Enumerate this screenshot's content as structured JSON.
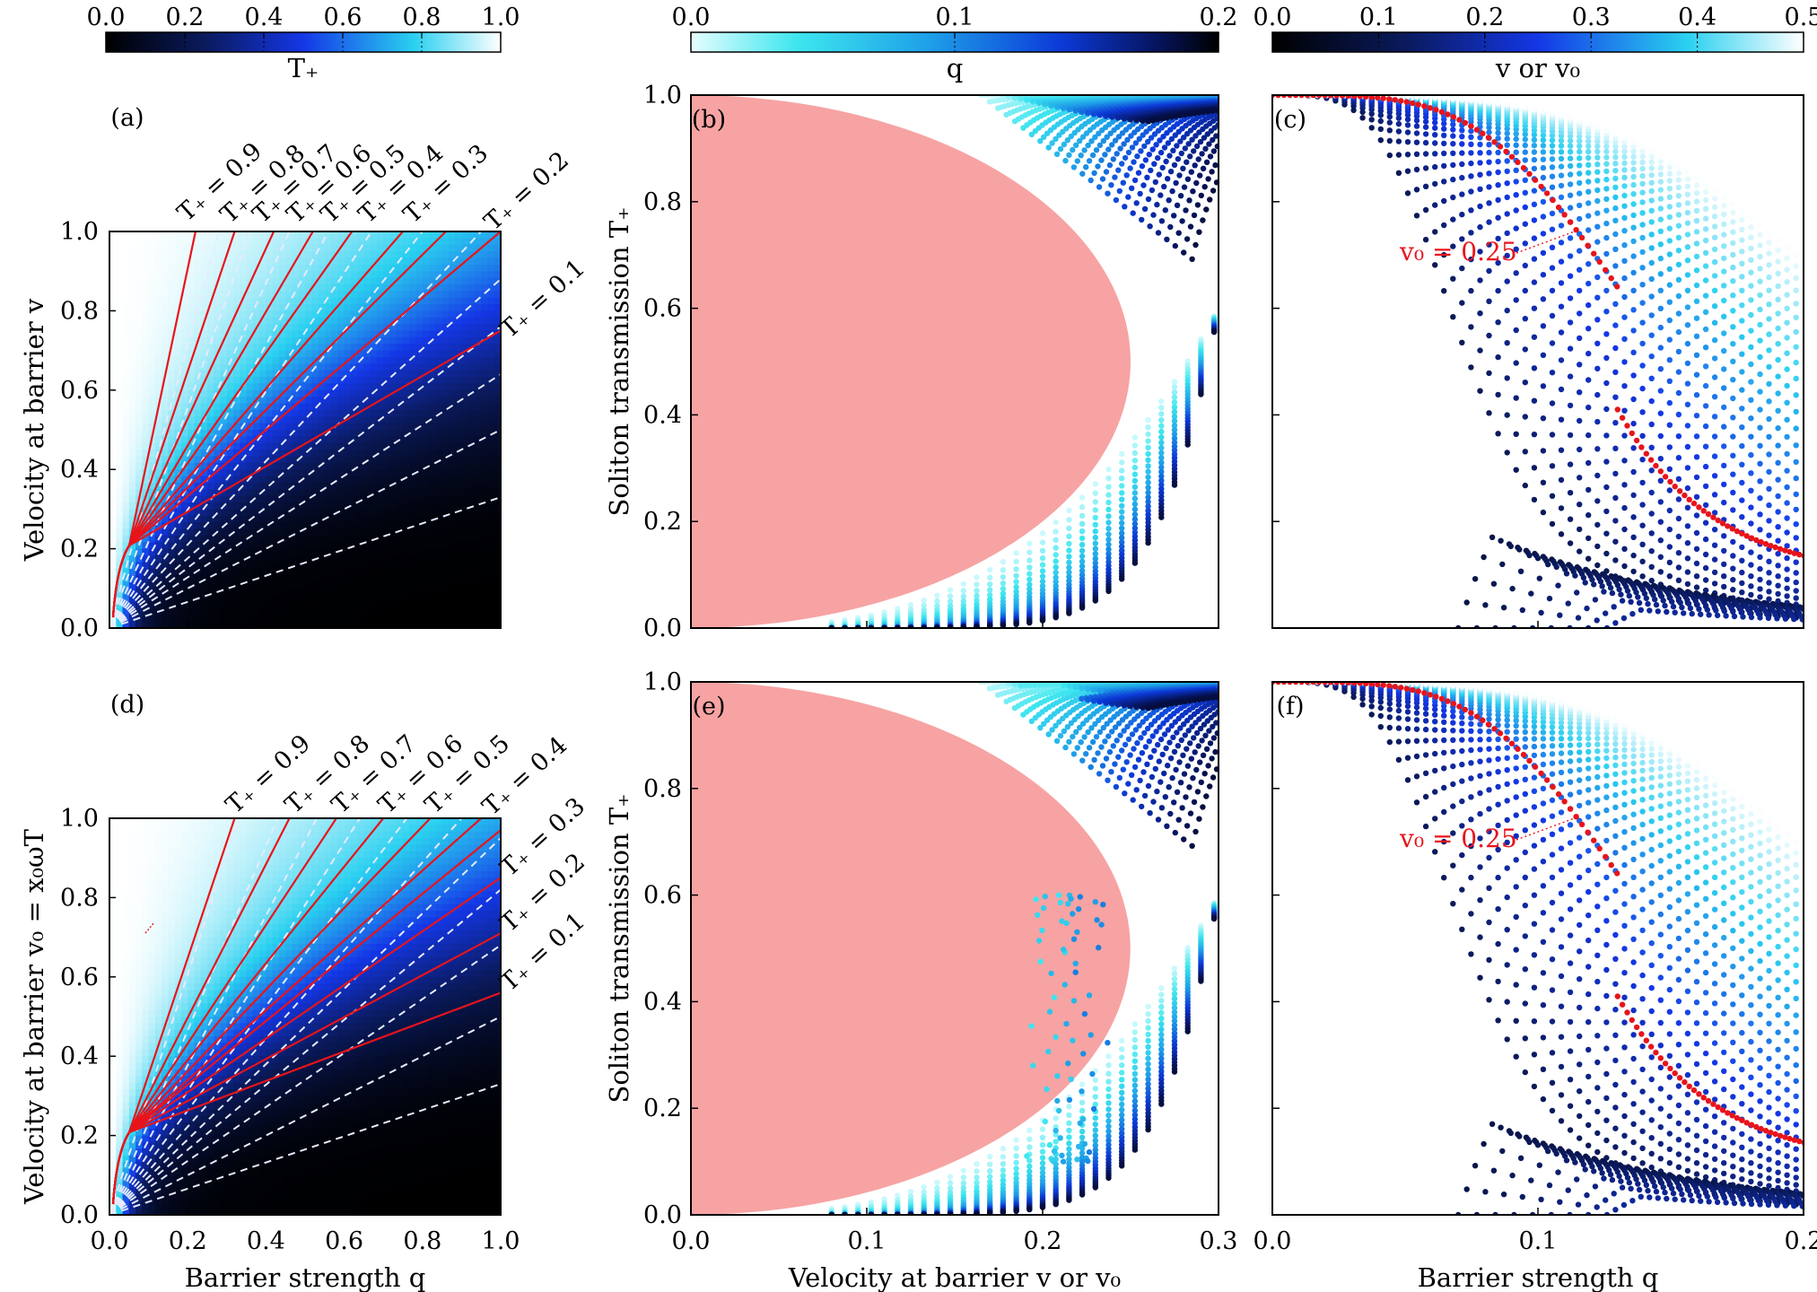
{
  "chart_data": [
    {
      "panel": "(a)",
      "type": "heatmap",
      "colorbar": {
        "label": "T₊",
        "ticks": [
          "0.0",
          "0.2",
          "0.4",
          "0.6",
          "0.8",
          "1.0"
        ],
        "range": [
          0,
          1
        ]
      },
      "xlabel": "Barrier strength q",
      "ylabel": "Velocity at barrier v",
      "xlim": [
        0,
        1
      ],
      "ylim": [
        0,
        1
      ],
      "xticks": [
        "0.0",
        "0.2",
        "0.4",
        "0.6",
        "0.8",
        "1.0"
      ],
      "yticks": [
        "0.0",
        "0.2",
        "0.4",
        "0.6",
        "0.8",
        "1.0"
      ],
      "contour_levels": [
        0.1,
        0.2,
        0.3,
        0.4,
        0.5,
        0.6,
        0.7,
        0.8,
        0.9
      ],
      "contour_labels": [
        "T₊ = 0.9",
        "T₊ = 0.8",
        "T₊ = 0.7",
        "T₊ = 0.6",
        "T₊ = 0.5",
        "T₊ = 0.4",
        "T₊ = 0.3",
        "T₊ = 0.2",
        "T₊ = 0.1"
      ],
      "red_contour_ends": [
        [
          0.22,
          1.0
        ],
        [
          0.32,
          1.0
        ],
        [
          0.42,
          1.0
        ],
        [
          0.52,
          1.0
        ],
        [
          0.62,
          1.0
        ],
        [
          0.75,
          1.0
        ],
        [
          0.86,
          1.0
        ],
        [
          1.0,
          1.0
        ],
        [
          1.0,
          0.75
        ]
      ],
      "white_dashed_ends": [
        [
          0.28,
          1.0
        ],
        [
          0.36,
          1.0
        ],
        [
          0.46,
          1.0
        ],
        [
          0.56,
          1.0
        ],
        [
          0.67,
          1.0
        ],
        [
          0.8,
          1.0
        ],
        [
          0.95,
          1.0
        ],
        [
          1.0,
          0.88
        ],
        [
          1.0,
          0.76
        ],
        [
          1.0,
          0.64
        ],
        [
          1.0,
          0.5
        ],
        [
          1.0,
          0.33
        ]
      ]
    },
    {
      "panel": "(b)",
      "type": "scatter",
      "colorbar": {
        "label": "q",
        "ticks": [
          "0.0",
          "0.1",
          "0.2"
        ],
        "range": [
          0,
          0.2
        ]
      },
      "xlabel": "",
      "ylabel": "Soliton transmission T₊",
      "xlim": [
        0,
        0.3
      ],
      "ylim": [
        0,
        1
      ],
      "yticks": [
        "0.0",
        "0.2",
        "0.4",
        "0.6",
        "0.8",
        "1.0"
      ],
      "shaded_region": {
        "shape": "half-ellipse",
        "x_max": 0.25,
        "y_range": [
          0,
          1
        ]
      }
    },
    {
      "panel": "(c)",
      "type": "scatter",
      "colorbar": {
        "label": "v or v₀",
        "ticks": [
          "0.0",
          "0.1",
          "0.2",
          "0.3",
          "0.4",
          "0.5"
        ],
        "range": [
          0,
          0.5
        ]
      },
      "xlim": [
        0,
        0.2
      ],
      "ylim": [
        0,
        1
      ],
      "annotation": "v₀ = 0.25",
      "highlight_series": {
        "name": "v₀ = 0.25",
        "drop_at_q": 0.13
      }
    },
    {
      "panel": "(d)",
      "type": "heatmap",
      "xlabel": "Barrier strength q",
      "ylabel": "Velocity at barrier v₀ = x₀ωT",
      "xlim": [
        0,
        1
      ],
      "ylim": [
        0,
        1
      ],
      "xticks": [
        "0.0",
        "0.2",
        "0.4",
        "0.6",
        "0.8",
        "1.0"
      ],
      "yticks": [
        "0.0",
        "0.2",
        "0.4",
        "0.6",
        "0.8",
        "1.0"
      ],
      "contour_levels": [
        0.1,
        0.2,
        0.3,
        0.4,
        0.5,
        0.6,
        0.7,
        0.8,
        0.9
      ],
      "contour_labels": [
        "T₊ = 0.9",
        "T₊ = 0.8",
        "T₊ = 0.7",
        "T₊ = 0.6",
        "T₊ = 0.5",
        "T₊ = 0.4",
        "T₊ = 0.3",
        "T₊ = 0.2",
        "T₊ = 0.1"
      ],
      "red_contour_ends": [
        [
          0.32,
          1.0
        ],
        [
          0.46,
          1.0
        ],
        [
          0.58,
          1.0
        ],
        [
          0.7,
          1.0
        ],
        [
          0.82,
          1.0
        ],
        [
          0.95,
          1.0
        ],
        [
          1.0,
          0.97
        ],
        [
          1.0,
          0.85
        ],
        [
          1.0,
          0.71
        ],
        [
          1.0,
          0.56
        ]
      ],
      "white_dashed_ends": [
        [
          0.33,
          1.0
        ],
        [
          0.43,
          1.0
        ],
        [
          0.53,
          1.0
        ],
        [
          0.64,
          1.0
        ],
        [
          0.76,
          1.0
        ],
        [
          0.9,
          1.0
        ],
        [
          1.0,
          0.95
        ],
        [
          1.0,
          0.82
        ],
        [
          1.0,
          0.68
        ],
        [
          1.0,
          0.5
        ],
        [
          1.0,
          0.33
        ]
      ]
    },
    {
      "panel": "(e)",
      "type": "scatter",
      "xlabel": "Velocity at barrier v or v₀",
      "ylabel": "Soliton transmission T₊",
      "xlim": [
        0,
        0.3
      ],
      "ylim": [
        0,
        1
      ],
      "xticks": [
        "0.0",
        "0.1",
        "0.2",
        "0.3"
      ],
      "yticks": [
        "0.0",
        "0.2",
        "0.4",
        "0.6",
        "0.8",
        "1.0"
      ],
      "shaded_region": {
        "shape": "half-ellipse",
        "x_max": 0.25,
        "y_range": [
          0,
          1
        ]
      }
    },
    {
      "panel": "(f)",
      "type": "scatter",
      "xlabel": "Barrier strength q",
      "xlim": [
        0,
        0.2
      ],
      "ylim": [
        0,
        1
      ],
      "xticks": [
        "0.0",
        "0.1",
        "0.2"
      ],
      "annotation": "v₀ = 0.25",
      "highlight_series": {
        "name": "v₀ = 0.25",
        "drop_at_q": 0.13
      }
    }
  ],
  "colors": {
    "red": "#e8141b",
    "shade": "#f7a3a3",
    "cmap_dark": [
      "#000000",
      "#0a1a5c",
      "#1437e6",
      "#2ad0f0",
      "#ffffff"
    ],
    "cmap_light": [
      "#e6fdff",
      "#3ee6ef",
      "#1ea0e8",
      "#0c3ad8",
      "#061560",
      "#000000"
    ]
  }
}
